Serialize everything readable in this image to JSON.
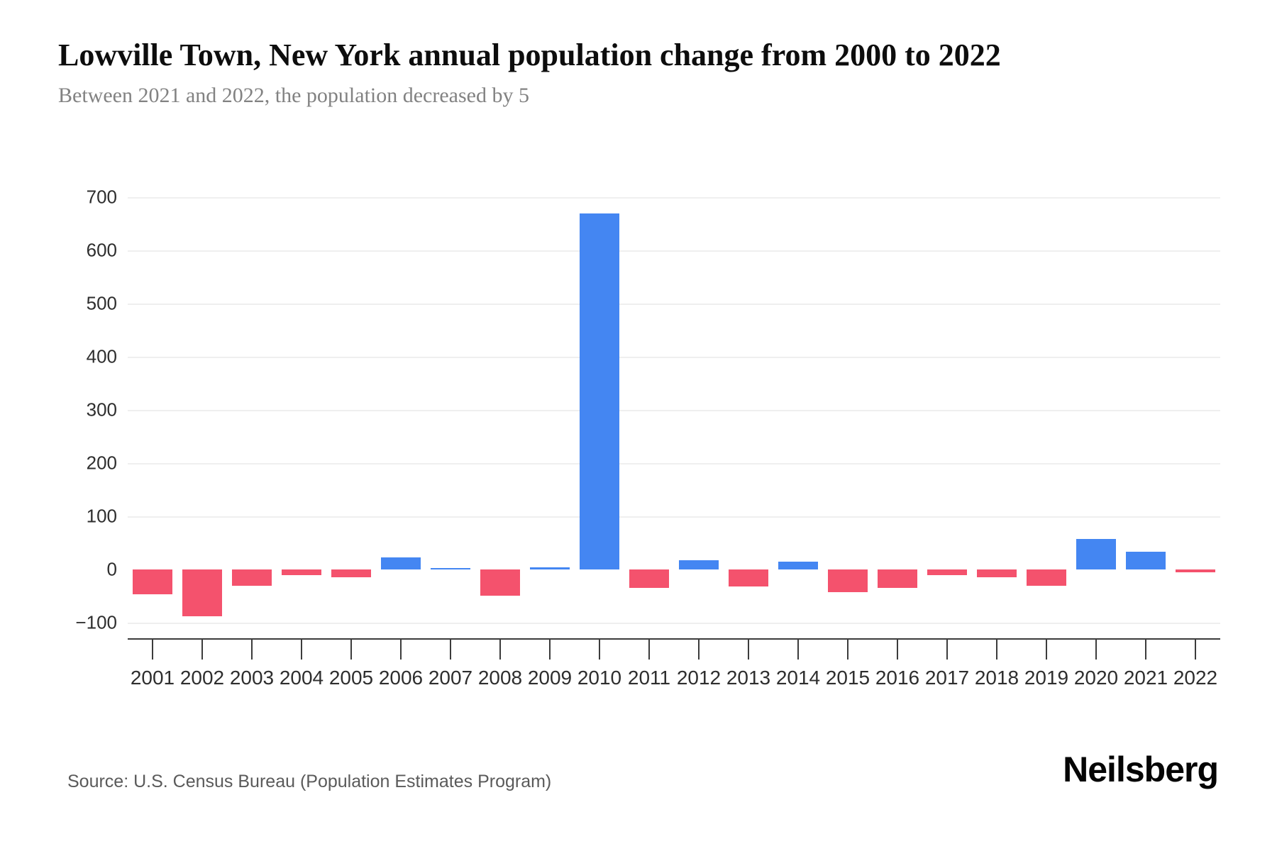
{
  "header": {
    "title": "Lowville Town, New York annual population change from 2000 to 2022",
    "subtitle": "Between 2021 and 2022, the population decreased by 5"
  },
  "footer": {
    "source": "Source: U.S. Census Bureau (Population Estimates Program)",
    "brand": "Neilsberg"
  },
  "colors": {
    "positive": "#4486F2",
    "negative": "#F4526D",
    "gridline": "#efefef",
    "axis": "#3c3c3c",
    "tick_label": "#2e2e2e",
    "subtitle": "#828282",
    "source": "#5a5a5a"
  },
  "chart_data": {
    "type": "bar",
    "title": "Lowville Town, New York annual population change from 2000 to 2022",
    "subtitle": "Between 2021 and 2022, the population decreased by 5",
    "categories": [
      "2001",
      "2002",
      "2003",
      "2004",
      "2005",
      "2006",
      "2007",
      "2008",
      "2009",
      "2010",
      "2011",
      "2012",
      "2013",
      "2014",
      "2015",
      "2016",
      "2017",
      "2018",
      "2019",
      "2020",
      "2021",
      "2022"
    ],
    "values": [
      -47,
      -88,
      -30,
      -10,
      -15,
      23,
      3,
      -49,
      4,
      669,
      -34,
      18,
      -32,
      15,
      -42,
      -34,
      -10,
      -15,
      -30,
      57,
      34,
      -5
    ],
    "xlabel": "",
    "ylabel": "",
    "ylim": [
      -150,
      760
    ],
    "yticks": [
      700,
      600,
      500,
      400,
      300,
      200,
      100,
      0,
      -100
    ],
    "grid": true,
    "legend": false,
    "positive_color": "#4486F2",
    "negative_color": "#F4526D"
  }
}
